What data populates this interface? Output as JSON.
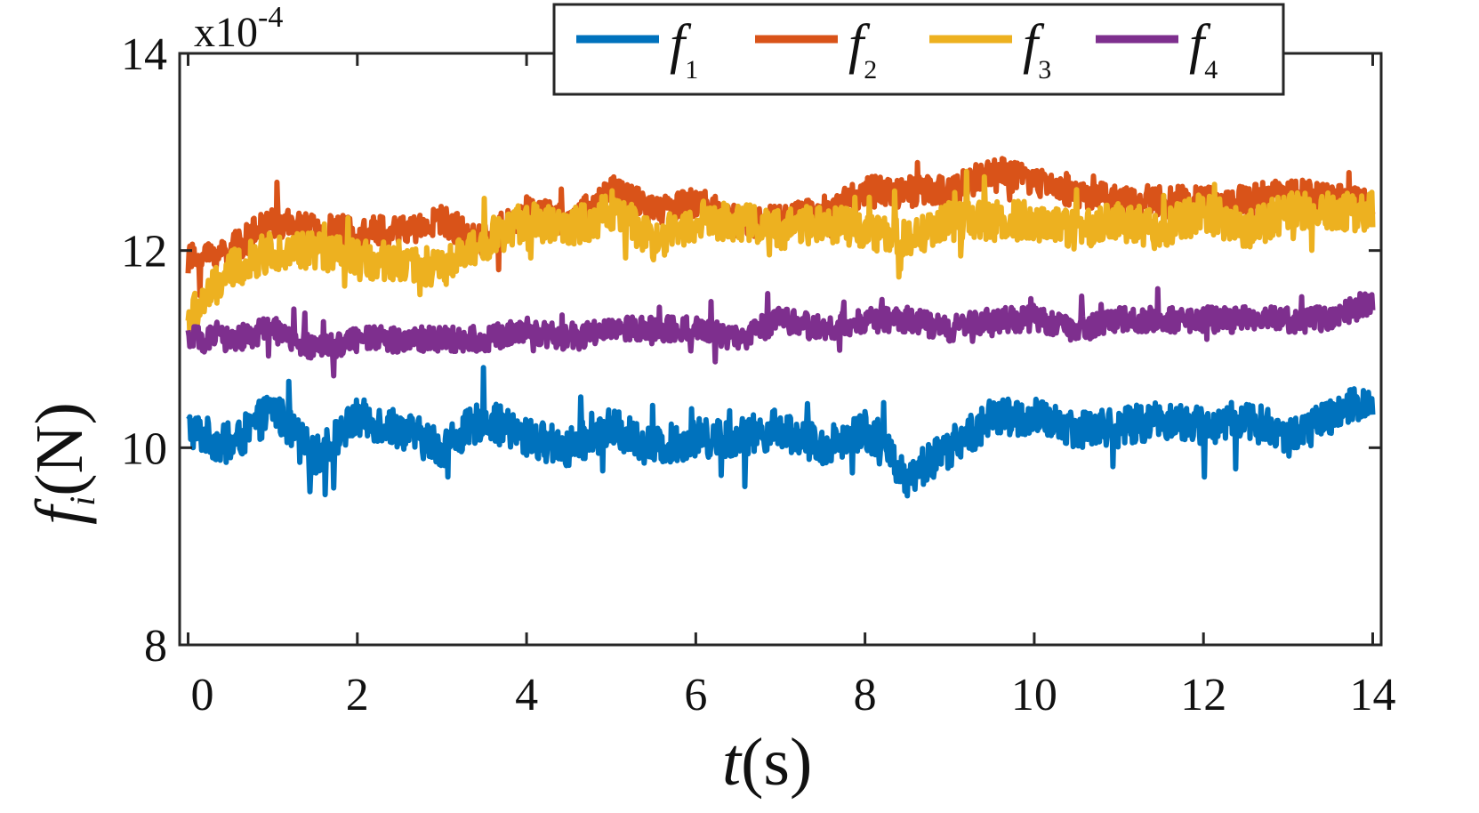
{
  "chart_data": {
    "type": "line",
    "xlabel_var": "t",
    "xlabel_unit": "(s)",
    "ylabel_var": "f",
    "ylabel_sub": "i",
    "ylabel_unit": "(N)",
    "y_multiplier_base": "x10",
    "y_multiplier_exp": "-4",
    "xlim": [
      -0.1,
      14.1
    ],
    "ylim": [
      8,
      14
    ],
    "xticks": [
      0,
      2,
      4,
      6,
      8,
      10,
      12,
      14
    ],
    "xtick_labels": [
      "0",
      "2",
      "4",
      "6",
      "8",
      "10",
      "12",
      "14"
    ],
    "yticks": [
      8,
      10,
      12,
      14
    ],
    "ytick_labels": [
      "8",
      "10",
      "12",
      "14"
    ],
    "legend_position": "top-right",
    "legend_columns": 4,
    "grid": false,
    "series": [
      {
        "name_var": "f",
        "name_sub": "1",
        "color": "#0072BD",
        "x": [
          0,
          0.5,
          1,
          1.5,
          2,
          2.5,
          3,
          3.5,
          4,
          4.5,
          5,
          5.5,
          6,
          6.5,
          7,
          7.5,
          8,
          8.5,
          9,
          9.5,
          10,
          10.5,
          11,
          11.5,
          12,
          12.5,
          13,
          13.5,
          14
        ],
        "y": [
          10.2,
          10.0,
          10.4,
          9.9,
          10.3,
          10.2,
          10.0,
          10.3,
          10.1,
          10.0,
          10.2,
          10.0,
          10.1,
          10.1,
          10.2,
          10.0,
          10.2,
          9.7,
          10.0,
          10.3,
          10.3,
          10.2,
          10.2,
          10.3,
          10.2,
          10.3,
          10.1,
          10.3,
          10.5
        ]
      },
      {
        "name_var": "f",
        "name_sub": "2",
        "color": "#D95319",
        "x": [
          0,
          0.5,
          1,
          1.5,
          2,
          2.5,
          3,
          3.5,
          4,
          4.5,
          5,
          5.5,
          6,
          6.5,
          7,
          7.5,
          8,
          8.5,
          9,
          9.5,
          10,
          10.5,
          11,
          11.5,
          12,
          12.5,
          13,
          13.5,
          14
        ],
        "y": [
          11.9,
          12.0,
          12.3,
          12.2,
          12.2,
          12.2,
          12.3,
          12.1,
          12.4,
          12.3,
          12.6,
          12.4,
          12.5,
          12.3,
          12.3,
          12.4,
          12.6,
          12.6,
          12.6,
          12.8,
          12.7,
          12.6,
          12.5,
          12.5,
          12.5,
          12.5,
          12.6,
          12.5,
          12.5
        ]
      },
      {
        "name_var": "f",
        "name_sub": "3",
        "color": "#EDB120",
        "x": [
          0,
          0.5,
          1,
          1.5,
          2,
          2.5,
          3,
          3.5,
          4,
          4.5,
          5,
          5.5,
          6,
          6.5,
          7,
          7.5,
          8,
          8.5,
          9,
          9.5,
          10,
          10.5,
          11,
          11.5,
          12,
          12.5,
          13,
          13.5,
          14
        ],
        "y": [
          11.3,
          11.8,
          12.0,
          12.0,
          11.9,
          11.9,
          11.8,
          12.1,
          12.3,
          12.2,
          12.4,
          12.1,
          12.3,
          12.3,
          12.2,
          12.3,
          12.2,
          12.1,
          12.3,
          12.3,
          12.3,
          12.2,
          12.3,
          12.2,
          12.4,
          12.2,
          12.4,
          12.4,
          12.4
        ]
      },
      {
        "name_var": "f",
        "name_sub": "4",
        "color": "#7E2F8E",
        "x": [
          0,
          0.5,
          1,
          1.5,
          2,
          2.5,
          3,
          3.5,
          4,
          4.5,
          5,
          5.5,
          6,
          6.5,
          7,
          7.5,
          8,
          8.5,
          9,
          9.5,
          10,
          10.5,
          11,
          11.5,
          12,
          12.5,
          13,
          13.5,
          14
        ],
        "y": [
          11.1,
          11.1,
          11.2,
          11.0,
          11.1,
          11.1,
          11.1,
          11.1,
          11.2,
          11.1,
          11.2,
          11.2,
          11.2,
          11.1,
          11.3,
          11.2,
          11.3,
          11.3,
          11.2,
          11.3,
          11.3,
          11.2,
          11.3,
          11.3,
          11.3,
          11.3,
          11.3,
          11.3,
          11.5
        ]
      }
    ]
  }
}
